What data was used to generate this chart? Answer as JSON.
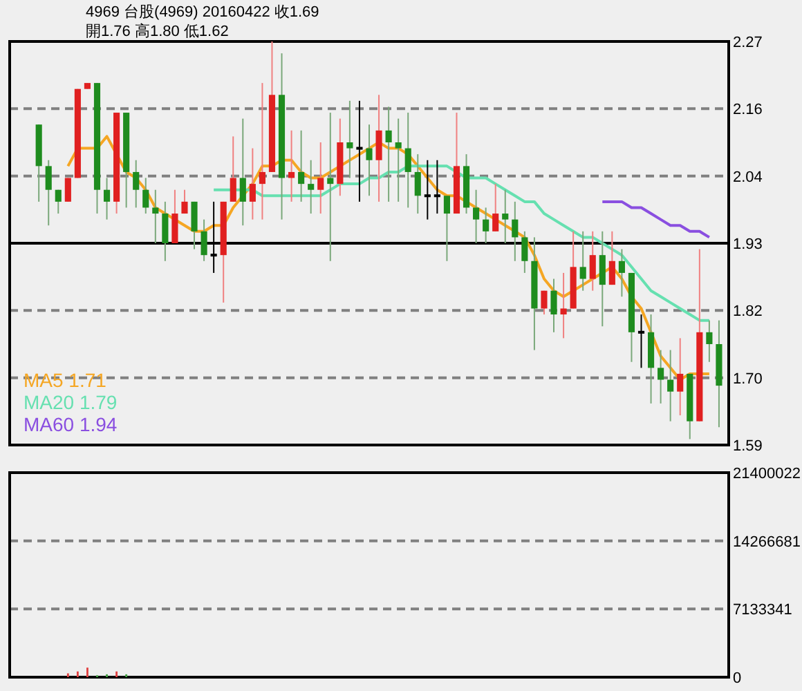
{
  "chart_data": [
    {
      "type": "candlestick",
      "title": "4969 台股(4969) 20160422 收1.69",
      "subtitle": "開1.76 高1.80 低1.62",
      "categories": [
        null,
        null,
        null,
        null,
        null,
        null,
        null,
        null,
        null,
        null,
        null,
        null,
        null,
        null,
        null,
        null,
        null,
        null,
        null,
        null,
        null,
        null,
        null,
        null,
        null,
        null,
        null,
        null,
        null,
        null,
        null,
        null,
        null,
        null,
        null,
        null,
        null,
        null,
        null,
        null,
        null,
        null,
        null,
        null,
        null,
        null,
        null,
        null,
        null,
        null,
        null,
        null,
        null,
        null,
        null,
        null,
        null,
        null,
        null,
        null,
        null,
        null,
        null,
        null,
        null,
        null,
        null,
        null,
        null,
        null,
        null
      ],
      "ohlc": [
        [
          2.13,
          2.13,
          2.0,
          2.06
        ],
        [
          2.06,
          2.07,
          1.96,
          2.02
        ],
        [
          2.02,
          2.02,
          1.98,
          2.0
        ],
        [
          2.0,
          2.04,
          2.0,
          2.04
        ],
        [
          2.04,
          2.19,
          2.04,
          2.19
        ],
        [
          2.19,
          2.2,
          2.19,
          2.2
        ],
        [
          2.2,
          2.2,
          1.98,
          2.02
        ],
        [
          2.02,
          2.04,
          1.97,
          2.0
        ],
        [
          2.0,
          2.15,
          1.98,
          2.15
        ],
        [
          2.15,
          2.15,
          1.99,
          2.05
        ],
        [
          2.05,
          2.07,
          1.99,
          2.02
        ],
        [
          2.02,
          2.04,
          1.98,
          1.99
        ],
        [
          1.99,
          2.02,
          1.93,
          1.98
        ],
        [
          1.98,
          2.0,
          1.9,
          1.93
        ],
        [
          1.93,
          2.02,
          1.93,
          1.98
        ],
        [
          1.98,
          2.02,
          1.98,
          2.0
        ],
        [
          2.0,
          2.0,
          1.92,
          1.95
        ],
        [
          1.95,
          1.97,
          1.9,
          1.91
        ],
        [
          1.91,
          2.0,
          1.88,
          1.91
        ],
        [
          1.91,
          2.0,
          1.83,
          2.0
        ],
        [
          2.0,
          2.11,
          2.0,
          2.04
        ],
        [
          2.04,
          2.14,
          1.96,
          2.0
        ],
        [
          2.0,
          2.09,
          1.97,
          2.03
        ],
        [
          2.03,
          2.2,
          1.97,
          2.05
        ],
        [
          2.05,
          2.27,
          2.05,
          2.18
        ],
        [
          2.18,
          2.25,
          1.97,
          2.04
        ],
        [
          2.04,
          2.12,
          2.0,
          2.05
        ],
        [
          2.05,
          2.12,
          2.0,
          2.03
        ],
        [
          2.03,
          2.07,
          1.98,
          2.02
        ],
        [
          2.02,
          2.1,
          1.98,
          2.04
        ],
        [
          2.04,
          2.15,
          1.9,
          2.03
        ],
        [
          2.03,
          2.14,
          2.01,
          2.1
        ],
        [
          2.1,
          2.17,
          2.04,
          2.09
        ],
        [
          2.09,
          2.17,
          2.0,
          2.09
        ],
        [
          2.09,
          2.13,
          2.01,
          2.07
        ],
        [
          2.07,
          2.18,
          2.0,
          2.12
        ],
        [
          2.12,
          2.16,
          2.0,
          2.1
        ],
        [
          2.1,
          2.14,
          2.0,
          2.09
        ],
        [
          2.09,
          2.15,
          1.99,
          2.05
        ],
        [
          2.05,
          2.08,
          1.98,
          2.01
        ],
        [
          2.01,
          2.07,
          1.97,
          2.01
        ],
        [
          2.01,
          2.07,
          1.98,
          2.01
        ],
        [
          2.01,
          2.01,
          1.9,
          1.98
        ],
        [
          1.98,
          2.15,
          1.98,
          2.06
        ],
        [
          2.06,
          2.08,
          1.98,
          1.99
        ],
        [
          1.99,
          2.02,
          1.93,
          1.97
        ],
        [
          1.97,
          1.99,
          1.93,
          1.95
        ],
        [
          1.95,
          2.03,
          1.95,
          1.98
        ],
        [
          1.98,
          2.02,
          1.93,
          1.97
        ],
        [
          1.97,
          2.0,
          1.9,
          1.94
        ],
        [
          1.94,
          1.95,
          1.88,
          1.9
        ],
        [
          1.9,
          1.94,
          1.75,
          1.82
        ],
        [
          1.82,
          1.85,
          1.81,
          1.85
        ],
        [
          1.85,
          1.87,
          1.78,
          1.81
        ],
        [
          1.81,
          1.88,
          1.77,
          1.82
        ],
        [
          1.82,
          1.95,
          1.82,
          1.89
        ],
        [
          1.89,
          1.95,
          1.85,
          1.87
        ],
        [
          1.87,
          1.95,
          1.85,
          1.91
        ],
        [
          1.91,
          1.95,
          1.79,
          1.86
        ],
        [
          1.86,
          1.95,
          1.86,
          1.9
        ],
        [
          1.9,
          1.92,
          1.84,
          1.88
        ],
        [
          1.88,
          1.88,
          1.73,
          1.78
        ],
        [
          1.78,
          1.81,
          1.72,
          1.78
        ],
        [
          1.78,
          1.81,
          1.66,
          1.72
        ],
        [
          1.72,
          1.75,
          1.66,
          1.7
        ],
        [
          1.7,
          1.75,
          1.63,
          1.68
        ],
        [
          1.68,
          1.77,
          1.64,
          1.71
        ],
        [
          1.71,
          1.71,
          1.6,
          1.63
        ],
        [
          1.63,
          1.92,
          1.63,
          1.78
        ],
        [
          1.78,
          1.8,
          1.73,
          1.76
        ],
        [
          1.76,
          1.8,
          1.62,
          1.69
        ]
      ],
      "series": [
        {
          "name": "MA5 1.71",
          "type": "line",
          "color": "#f5a623",
          "values": [
            null,
            null,
            null,
            2.06,
            2.09,
            2.09,
            2.09,
            2.11,
            2.08,
            2.05,
            2.04,
            2.02,
            1.99,
            1.98,
            1.97,
            1.96,
            1.95,
            1.95,
            1.96,
            1.96,
            1.99,
            2.01,
            2.03,
            2.06,
            2.06,
            2.07,
            2.07,
            2.05,
            2.04,
            2.04,
            2.05,
            2.06,
            2.07,
            2.08,
            2.09,
            2.1,
            2.09,
            2.09,
            2.08,
            2.06,
            2.04,
            2.02,
            2.01,
            2.01,
            2.0,
            1.99,
            1.98,
            1.97,
            1.96,
            1.95,
            1.94,
            1.91,
            1.87,
            1.85,
            1.84,
            1.85,
            1.86,
            1.87,
            1.88,
            1.89,
            1.87,
            1.84,
            1.82,
            1.78,
            1.74,
            1.72,
            1.7,
            1.71,
            1.71,
            1.71,
            null
          ]
        },
        {
          "name": "MA20 1.79",
          "type": "line",
          "color": "#66e0b0",
          "values": [
            null,
            null,
            null,
            null,
            null,
            null,
            null,
            null,
            null,
            null,
            null,
            null,
            null,
            null,
            null,
            null,
            null,
            null,
            2.02,
            2.02,
            2.02,
            2.02,
            2.02,
            2.01,
            2.01,
            2.01,
            2.01,
            2.01,
            2.01,
            2.01,
            2.02,
            2.03,
            2.03,
            2.03,
            2.04,
            2.04,
            2.05,
            2.05,
            2.06,
            2.06,
            2.06,
            2.06,
            2.06,
            2.05,
            2.04,
            2.04,
            2.04,
            2.03,
            2.02,
            2.01,
            2.0,
            2.0,
            1.98,
            1.97,
            1.96,
            1.95,
            1.94,
            1.94,
            1.93,
            1.92,
            1.91,
            1.89,
            1.87,
            1.85,
            1.84,
            1.83,
            1.82,
            1.81,
            1.8,
            1.8,
            null
          ]
        },
        {
          "name": "MA60 1.94",
          "type": "line",
          "color": "#8a4fe0",
          "values": [
            null,
            null,
            null,
            null,
            null,
            null,
            null,
            null,
            null,
            null,
            null,
            null,
            null,
            null,
            null,
            null,
            null,
            null,
            null,
            null,
            null,
            null,
            null,
            null,
            null,
            null,
            null,
            null,
            null,
            null,
            null,
            null,
            null,
            null,
            null,
            null,
            null,
            null,
            null,
            null,
            null,
            null,
            null,
            null,
            null,
            null,
            null,
            null,
            null,
            null,
            null,
            null,
            null,
            null,
            null,
            null,
            null,
            null,
            2.0,
            2.0,
            2.0,
            1.99,
            1.99,
            1.98,
            1.97,
            1.96,
            1.96,
            1.95,
            1.95,
            1.94,
            null
          ]
        }
      ],
      "ylim": [
        1.59,
        2.27
      ],
      "yticks": [
        {
          "value": 1.59,
          "label": "1.59"
        },
        {
          "value": 1.7033,
          "label": "1.70"
        },
        {
          "value": 1.8167,
          "label": "1.82"
        },
        {
          "value": 1.93,
          "label": "1.93"
        },
        {
          "value": 2.0433,
          "label": "2.04"
        },
        {
          "value": 2.1567,
          "label": "2.16"
        },
        {
          "value": 2.27,
          "label": "2.27"
        }
      ],
      "grid": "y",
      "legend": "bottom left",
      "ref_lines": [
        {
          "axis": "y",
          "value": 1.93,
          "color": "#000000",
          "line_style": "solid"
        }
      ]
    },
    {
      "type": "bar",
      "categories": [
        null,
        null,
        null,
        null,
        null,
        null,
        null,
        null,
        null,
        null,
        null,
        null,
        null,
        null,
        null,
        null,
        null,
        null,
        null,
        null,
        null,
        null,
        null,
        null,
        null,
        null,
        null,
        null,
        null,
        null,
        null,
        null,
        null,
        null,
        null,
        null,
        null,
        null,
        null,
        null,
        null,
        null,
        null,
        null,
        null,
        null,
        null,
        null,
        null,
        null,
        null,
        null,
        null,
        null,
        null,
        null,
        null,
        null,
        null,
        null,
        null,
        null,
        null,
        null,
        null,
        null,
        null,
        null,
        null,
        null,
        null
      ],
      "values": [
        null,
        null,
        null,
        400000,
        600000,
        1000000,
        200000,
        300000,
        600000,
        300000,
        null,
        null,
        null,
        null,
        null,
        null,
        null,
        null,
        null,
        null,
        null,
        null,
        null,
        null,
        null,
        null,
        null,
        null,
        null,
        null,
        null,
        null,
        null,
        null,
        null,
        null,
        null,
        null,
        null,
        null,
        null,
        null,
        null,
        null,
        null,
        null,
        null,
        null,
        null,
        null,
        null,
        null,
        null,
        null,
        null,
        null,
        null,
        null,
        null,
        null,
        null,
        null,
        null,
        null,
        null,
        null,
        null,
        null,
        null,
        null,
        null
      ],
      "colors": [
        null,
        null,
        null,
        "#e04040",
        "#e04040",
        "#e04040",
        "#40a040",
        "#40a040",
        "#e04040",
        "#40a040",
        null,
        null,
        null,
        null,
        null,
        null,
        null,
        null,
        null,
        null,
        null,
        null,
        null,
        null,
        null,
        null,
        null,
        null,
        null,
        null,
        null,
        null,
        null,
        null,
        null,
        null,
        null,
        null,
        null,
        null,
        null,
        null,
        null,
        null,
        null,
        null,
        null,
        null,
        null,
        null,
        null,
        null,
        null,
        null,
        null,
        null,
        null,
        null,
        null,
        null,
        null,
        null,
        null,
        null,
        null,
        null,
        null,
        null,
        null,
        null,
        null
      ],
      "ylim": [
        0,
        21400022
      ],
      "yticks": [
        0,
        7133341,
        14266681,
        21400022
      ],
      "grid": "y"
    }
  ]
}
